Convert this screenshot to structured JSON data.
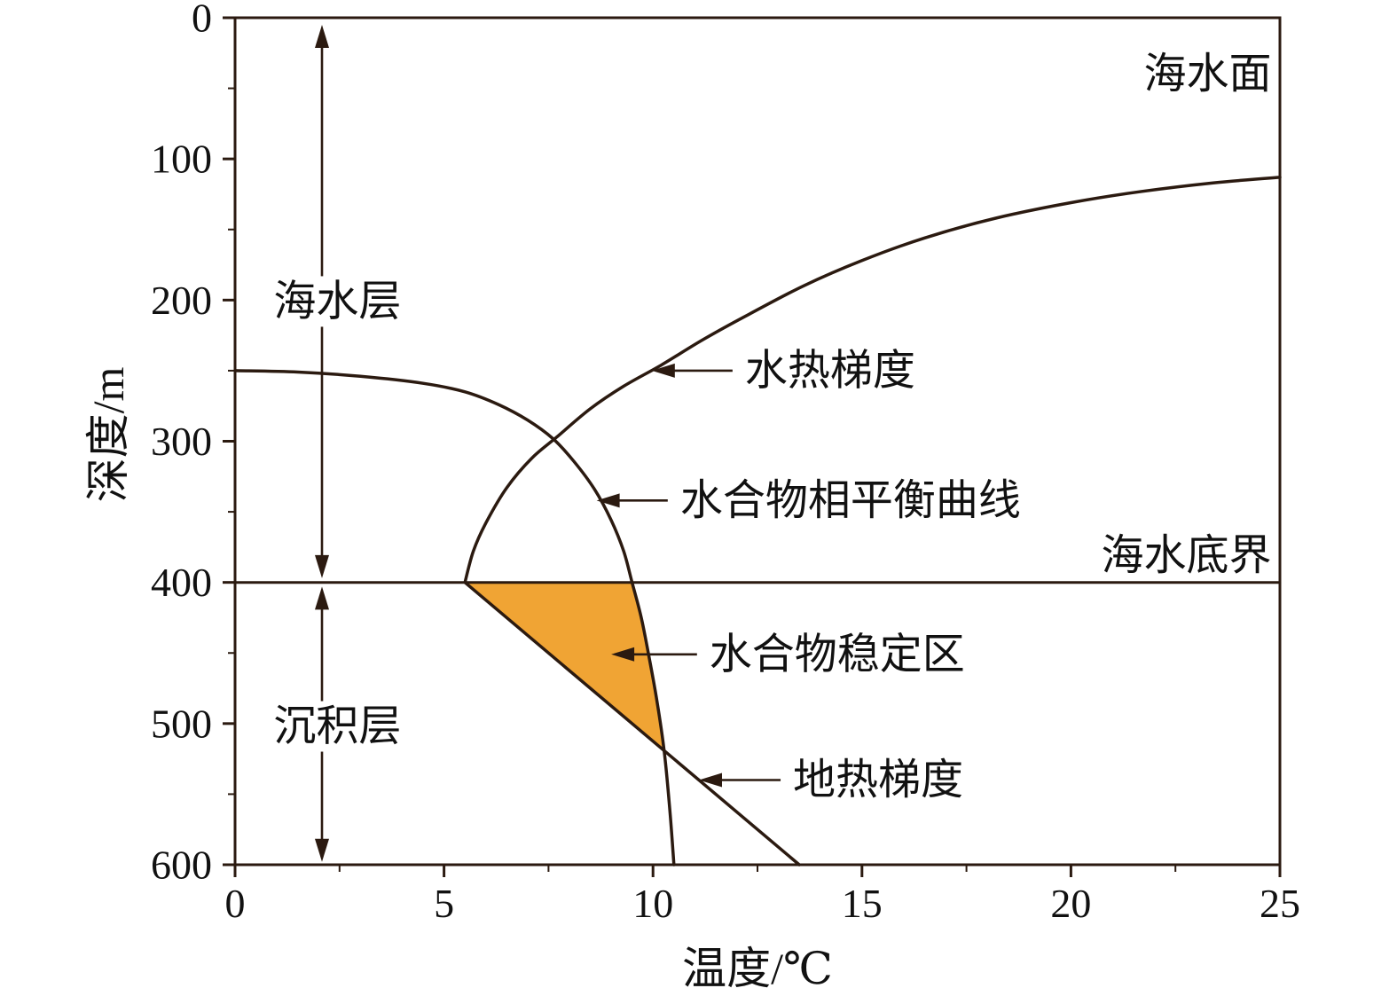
{
  "chart_data": {
    "type": "line",
    "title": "",
    "xlabel": "温度/℃",
    "ylabel": "深度/m",
    "xlim": [
      0,
      25
    ],
    "ylim": [
      0,
      600
    ],
    "y_is_depth_inverted": true,
    "grid": false,
    "x_ticks": [
      0,
      5,
      10,
      15,
      20,
      25
    ],
    "x_minor_step": 2.5,
    "y_ticks": [
      0,
      100,
      200,
      300,
      400,
      500,
      600
    ],
    "y_minor_step": 50,
    "line_color": "#2b1a10",
    "text_color": "#111111",
    "region": {
      "key": "hydrate-stability-zone",
      "label": "水合物稳定区",
      "fill": "#f0a434",
      "points": [
        [
          5.5,
          400
        ],
        [
          9.5,
          400
        ],
        [
          9.72,
          425
        ],
        [
          9.92,
          455
        ],
        [
          10.1,
          485
        ],
        [
          10.27,
          520
        ]
      ]
    },
    "series": [
      {
        "key": "hydrothermal-gradient",
        "name": "水热梯度",
        "width": 3.5,
        "points": [
          [
            5.5,
            400
          ],
          [
            5.7,
            378
          ],
          [
            6.0,
            358
          ],
          [
            6.5,
            333
          ],
          [
            7.1,
            312
          ],
          [
            7.7,
            297
          ],
          [
            8.5,
            277
          ],
          [
            9.3,
            261
          ],
          [
            10.2,
            246
          ],
          [
            11.2,
            228
          ],
          [
            12.3,
            210
          ],
          [
            13.6,
            190
          ],
          [
            15.0,
            172
          ],
          [
            16.5,
            156
          ],
          [
            18.2,
            142
          ],
          [
            20.0,
            131
          ],
          [
            21.7,
            123
          ],
          [
            23.4,
            117
          ],
          [
            25,
            113
          ]
        ]
      },
      {
        "key": "geothermal-gradient",
        "name": "地热梯度",
        "width": 3.5,
        "points": [
          [
            5.5,
            400
          ],
          [
            13.5,
            600
          ]
        ]
      },
      {
        "key": "hydrate-phase-equilibrium",
        "name": "水合物相平衡曲线",
        "width": 3.5,
        "points": [
          [
            0,
            250
          ],
          [
            1.5,
            251
          ],
          [
            3,
            254
          ],
          [
            4.5,
            259
          ],
          [
            5.5,
            265
          ],
          [
            6.3,
            274
          ],
          [
            7.0,
            285
          ],
          [
            7.6,
            298
          ],
          [
            8.1,
            314
          ],
          [
            8.6,
            334
          ],
          [
            9.0,
            356
          ],
          [
            9.3,
            378
          ],
          [
            9.5,
            400
          ],
          [
            9.72,
            425
          ],
          [
            9.92,
            455
          ],
          [
            10.1,
            485
          ],
          [
            10.27,
            520
          ],
          [
            10.4,
            560
          ],
          [
            10.5,
            600
          ]
        ]
      },
      {
        "key": "seafloor-line",
        "name": "海水底界线",
        "width": 3,
        "points": [
          [
            0,
            400
          ],
          [
            25,
            400
          ]
        ]
      }
    ],
    "annotations": [
      {
        "key": "sea-surface",
        "label": "海水面",
        "type": "text",
        "x": 24.8,
        "y": 40,
        "anchor": "end"
      },
      {
        "key": "seafloor-label",
        "label": "海水底界",
        "type": "text",
        "x": 24.8,
        "y": 381,
        "anchor": "end"
      },
      {
        "key": "hydrothermal-gradient-label",
        "label": "水热梯度",
        "type": "arrow",
        "tip": [
          9.97,
          250
        ],
        "text": [
          12.2,
          250
        ]
      },
      {
        "key": "equilibrium-label",
        "label": "水合物相平衡曲线",
        "type": "arrow",
        "tip": [
          8.65,
          342
        ],
        "text": [
          10.65,
          342
        ]
      },
      {
        "key": "stability-zone-label",
        "label": "水合物稳定区",
        "type": "arrow",
        "tip": [
          9.0,
          451
        ],
        "text": [
          11.35,
          451
        ]
      },
      {
        "key": "geothermal-gradient-label",
        "label": "地热梯度",
        "type": "arrow",
        "tip": [
          11.1,
          540
        ],
        "text": [
          13.35,
          540
        ]
      },
      {
        "key": "seawater-layer",
        "label": "海水层",
        "type": "span",
        "x": 2.08,
        "from": 5,
        "to": 397,
        "text": [
          2.45,
          201
        ]
      },
      {
        "key": "sediment-layer",
        "label": "沉积层",
        "type": "span",
        "x": 2.08,
        "from": 403,
        "to": 598,
        "text": [
          2.45,
          502
        ]
      }
    ]
  }
}
